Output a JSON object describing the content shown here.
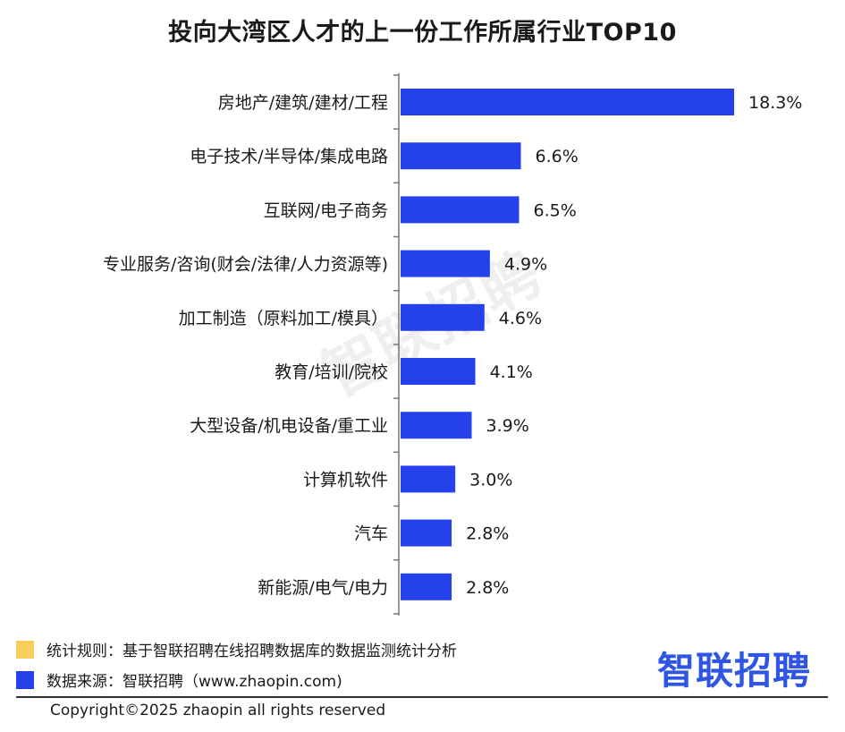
{
  "chart_data": {
    "type": "bar",
    "orientation": "horizontal",
    "title": "投向大湾区人才的上一份工作所属行业TOP10",
    "categories": [
      "房地产/建筑/建材/工程",
      "电子技术/半导体/集成电路",
      "互联网/电子商务",
      "专业服务/咨询(财会/法律/人力资源等)",
      "加工制造（原料加工/模具）",
      "教育/培训/院校",
      "大型设备/机电设备/重工业",
      "计算机软件",
      "汽车",
      "新能源/电气/电力"
    ],
    "values": [
      18.3,
      6.6,
      6.5,
      4.9,
      4.6,
      4.1,
      3.9,
      3.0,
      2.8,
      2.8
    ],
    "value_labels": [
      "18.3%",
      "6.6%",
      "6.5%",
      "4.9%",
      "4.6%",
      "4.1%",
      "3.9%",
      "3.0%",
      "2.8%",
      "2.8%"
    ],
    "xlim": [
      0,
      18.3
    ],
    "bar_color": "#2541eb",
    "grid": false,
    "legend": "bottom-left"
  },
  "watermark": "智联招聘",
  "legend": {
    "rule_color": "#f7ce5b",
    "rule_text": "统计规则：基于智联招聘在线招聘数据库的数据监测统计分析",
    "source_color": "#2541eb",
    "source_text": "数据来源：智联招聘（www.zhaopin.com)"
  },
  "logo_text": "智联招聘",
  "copyright": "Copyright©2025 zhaopin all rights reserved"
}
